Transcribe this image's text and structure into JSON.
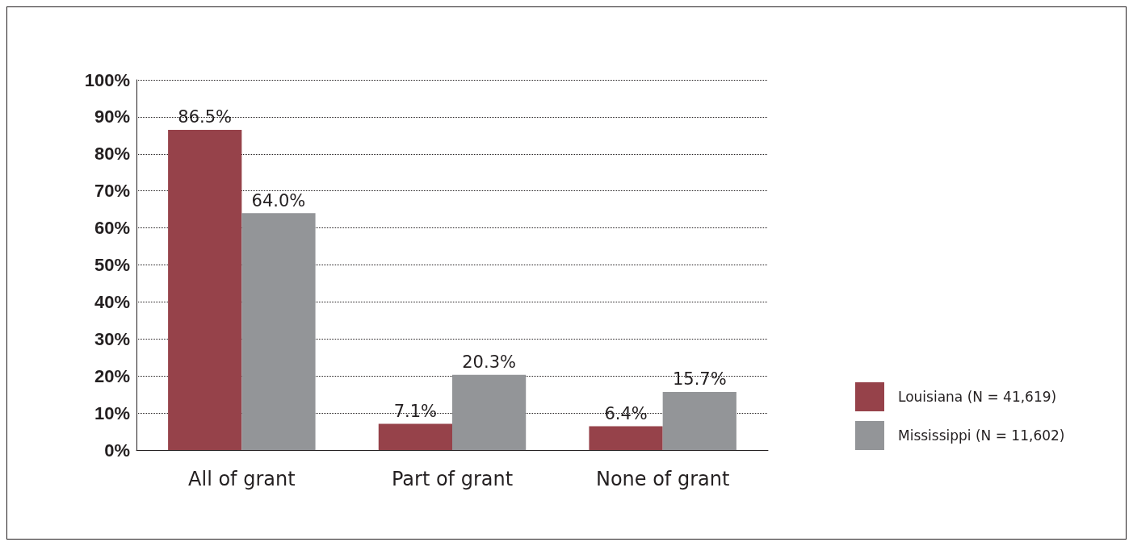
{
  "chart_data": {
    "type": "bar",
    "categories": [
      "All of grant",
      "Part of grant",
      "None of grant"
    ],
    "series": [
      {
        "name": "Louisiana (N = 41,619)",
        "color": "#96424a",
        "values": [
          86.5,
          7.1,
          6.4
        ],
        "value_labels": [
          "86.5%",
          "7.1%",
          "6.4%"
        ]
      },
      {
        "name": "Mississippi (N = 11,602)",
        "color": "#939598",
        "values": [
          64.0,
          20.3,
          15.7
        ],
        "value_labels": [
          "64.0%",
          "20.3%",
          "15.7%"
        ]
      }
    ],
    "ylim": [
      0,
      100
    ],
    "yticks": [
      {
        "value": 0,
        "label": "0%"
      },
      {
        "value": 10,
        "label": "10%"
      },
      {
        "value": 20,
        "label": "20%"
      },
      {
        "value": 30,
        "label": "30%"
      },
      {
        "value": 40,
        "label": "40%"
      },
      {
        "value": 50,
        "label": "50%"
      },
      {
        "value": 60,
        "label": "60%"
      },
      {
        "value": 70,
        "label": "70%"
      },
      {
        "value": 80,
        "label": "80%"
      },
      {
        "value": 90,
        "label": "90%"
      },
      {
        "value": 100,
        "label": "100%"
      }
    ],
    "grid": "y",
    "legend": "right"
  }
}
